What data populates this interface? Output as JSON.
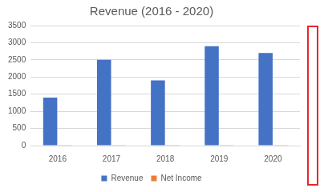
{
  "chart_data": {
    "type": "bar",
    "title": "Revenue (2016 - 2020)",
    "categories": [
      "2016",
      "2017",
      "2018",
      "2019",
      "2020"
    ],
    "series": [
      {
        "name": "Revenue",
        "color": "#4472c4",
        "values": [
          1400,
          2500,
          1900,
          2900,
          2700
        ]
      },
      {
        "name": "Net Income",
        "color": "#ed7d31",
        "values": [
          20,
          20,
          20,
          20,
          20
        ]
      }
    ],
    "ylim": [
      0,
      3500
    ],
    "yticks": [
      0,
      500,
      1000,
      1500,
      2000,
      2500,
      3000,
      3500
    ],
    "grid": true,
    "legend": "bottom"
  }
}
